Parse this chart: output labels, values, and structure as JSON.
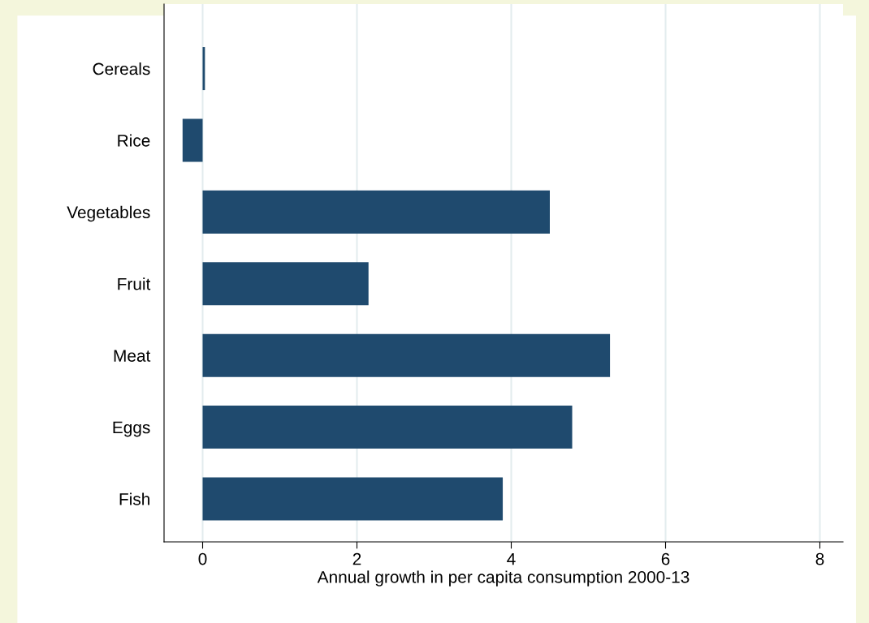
{
  "chart_data": {
    "type": "bar",
    "orientation": "horizontal",
    "xlabel": "Annual growth in per capita consumption 2000-13",
    "categories": [
      "Cereals",
      "Rice",
      "Vegetables",
      "Fruit",
      "Meat",
      "Eggs",
      "Fish"
    ],
    "values": [
      0.03,
      -0.26,
      4.5,
      2.15,
      5.28,
      4.79,
      3.89
    ],
    "color": "#1f4a6e",
    "xlim": [
      -0.5,
      8.3
    ],
    "xticks": [
      0,
      2,
      4,
      6,
      8
    ],
    "grid": "x"
  }
}
